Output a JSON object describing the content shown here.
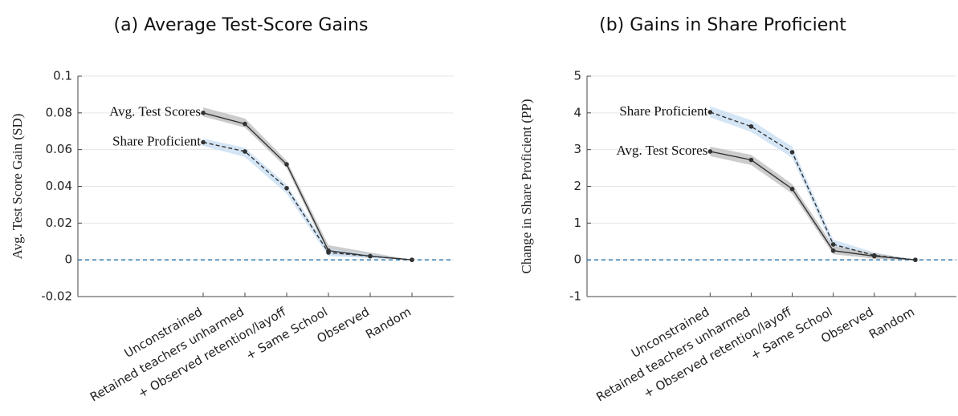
{
  "chart_data": [
    {
      "type": "line",
      "title": "(a) Average Test-Score Gains",
      "y_label": "Avg. Test Score Gain (SD)",
      "categories": [
        "Unconstrained",
        "Retained teachers unharmed",
        "+ Observed retention/layoff",
        "+ Same School",
        "Observed",
        "Random"
      ],
      "series": [
        {
          "name": "Avg. Test Scores",
          "color": "#333333",
          "band_color": "#bfbfbf",
          "dashed": false,
          "values": [
            0.08,
            0.074,
            0.052,
            0.005,
            0.002,
            0
          ],
          "lower": [
            0.078,
            0.072,
            0.05,
            0.003,
            0.001,
            0
          ],
          "upper": [
            0.083,
            0.077,
            0.054,
            0.008,
            0.004,
            0
          ]
        },
        {
          "name": "Share Proficient",
          "color": "#333333",
          "band_color": "#c9dff2",
          "dashed": true,
          "values": [
            0.064,
            0.059,
            0.039,
            0.004,
            0.002,
            0
          ],
          "lower": [
            0.062,
            0.056,
            0.036,
            0.002,
            0.001,
            0
          ],
          "upper": [
            0.066,
            0.061,
            0.041,
            0.006,
            0.003,
            0
          ]
        }
      ],
      "ylim": [
        -0.02,
        0.1
      ],
      "yticks": [
        -0.02,
        0,
        0.02,
        0.04,
        0.06,
        0.08,
        0.1
      ],
      "grid": true,
      "reference_line": 0,
      "reference_color": "#1f6fa8"
    },
    {
      "type": "line",
      "title": "(b) Gains in Share Proficient",
      "y_label": "Change in Share Proficient (PP)",
      "categories": [
        "Unconstrained",
        "Retained teachers unharmed",
        "+ Observed retention/layoff",
        "+ Same School",
        "Observed",
        "Random"
      ],
      "series": [
        {
          "name": "Share Proficient",
          "color": "#333333",
          "band_color": "#c9dff2",
          "dashed": true,
          "values": [
            4.02,
            3.63,
            2.93,
            0.42,
            0.12,
            0
          ],
          "lower": [
            3.88,
            3.48,
            2.78,
            0.3,
            0.05,
            0
          ],
          "upper": [
            4.18,
            3.8,
            3.08,
            0.55,
            0.2,
            0
          ]
        },
        {
          "name": "Avg. Test Scores",
          "color": "#333333",
          "band_color": "#bfbfbf",
          "dashed": false,
          "values": [
            2.95,
            2.72,
            1.93,
            0.25,
            0.1,
            0
          ],
          "lower": [
            2.82,
            2.58,
            1.8,
            0.15,
            0.03,
            0
          ],
          "upper": [
            3.08,
            2.86,
            2.06,
            0.38,
            0.18,
            0
          ]
        }
      ],
      "ylim": [
        -1,
        5
      ],
      "yticks": [
        -1,
        0,
        1,
        2,
        3,
        4,
        5
      ],
      "grid": true,
      "reference_line": 0,
      "reference_color": "#1f6fa8"
    }
  ]
}
